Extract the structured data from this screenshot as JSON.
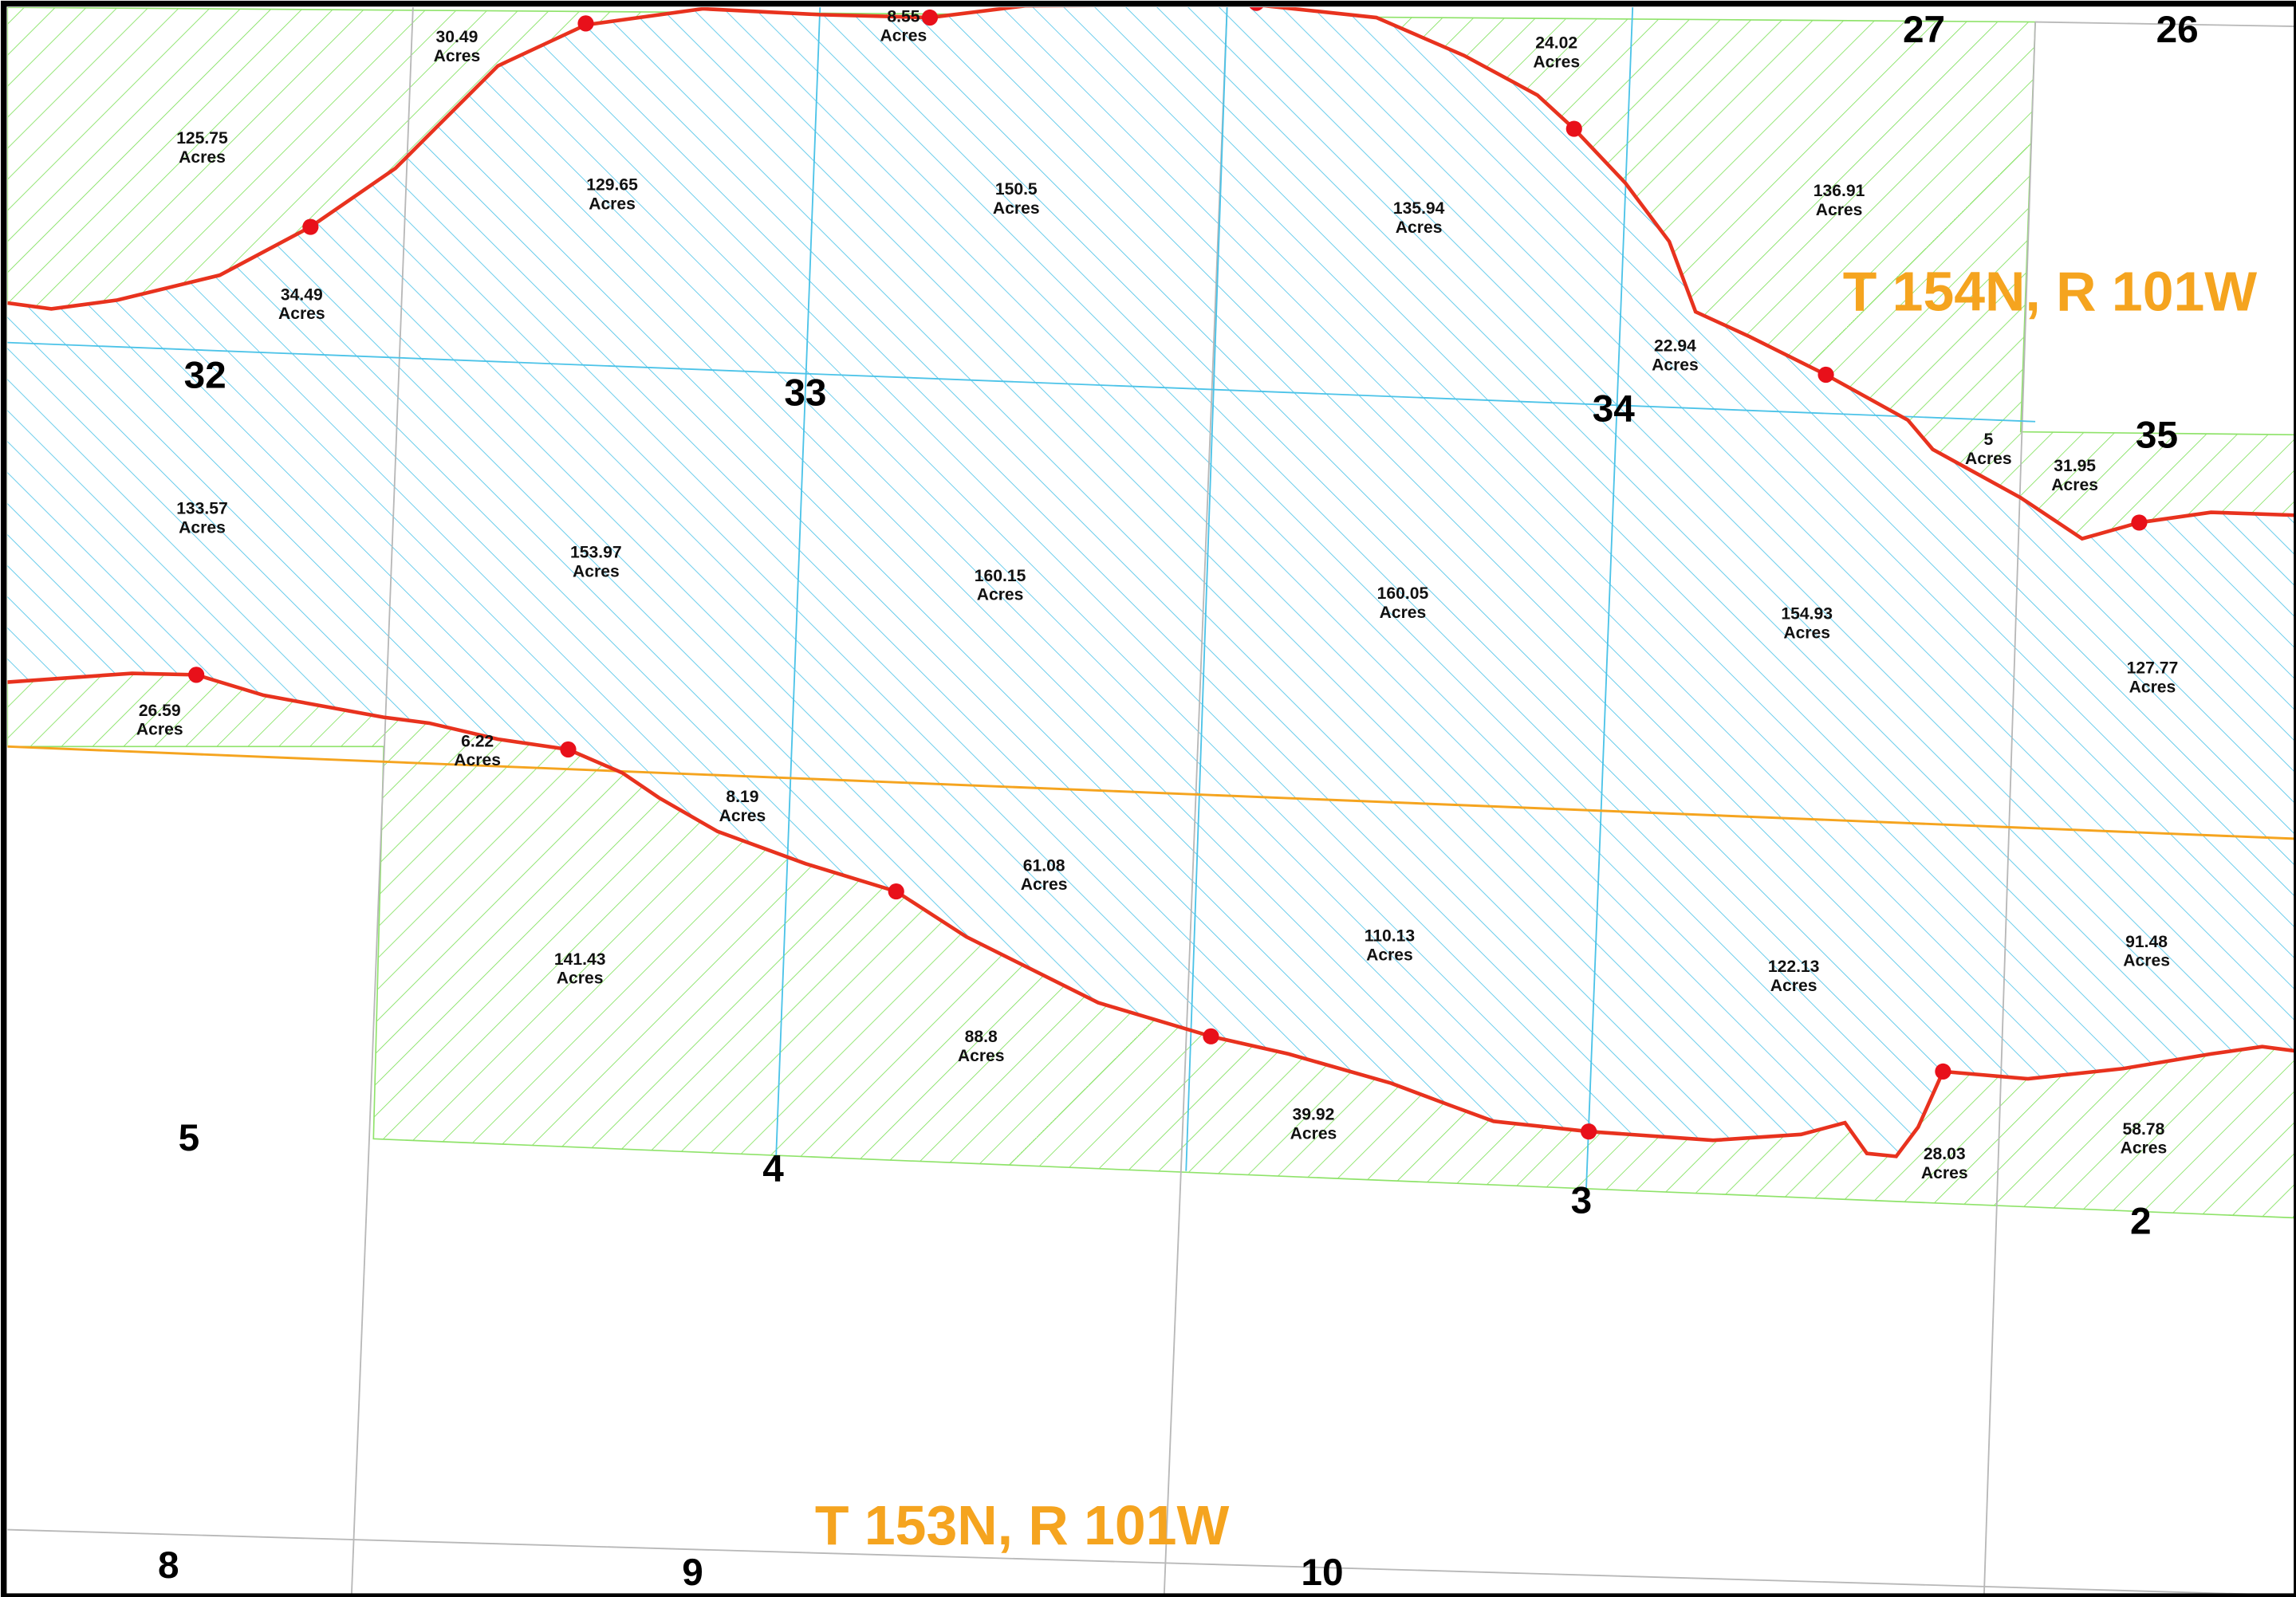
{
  "townships": [
    "T 154N, R 101W",
    "T 153N, R 101W"
  ],
  "sections": [
    "27",
    "26",
    "32",
    "33",
    "34",
    "35",
    "5",
    "4",
    "3",
    "2",
    "8",
    "9",
    "10"
  ],
  "unit": "Acres",
  "parcels": [
    125.75,
    30.49,
    8.55,
    24.02,
    129.65,
    150.5,
    135.94,
    136.91,
    34.49,
    22.94,
    5,
    31.95,
    133.57,
    153.97,
    160.15,
    160.05,
    154.93,
    127.77,
    26.59,
    6.22,
    8.19,
    61.08,
    110.13,
    122.13,
    91.48,
    141.43,
    88.8,
    39.92,
    28.03,
    58.78
  ]
}
